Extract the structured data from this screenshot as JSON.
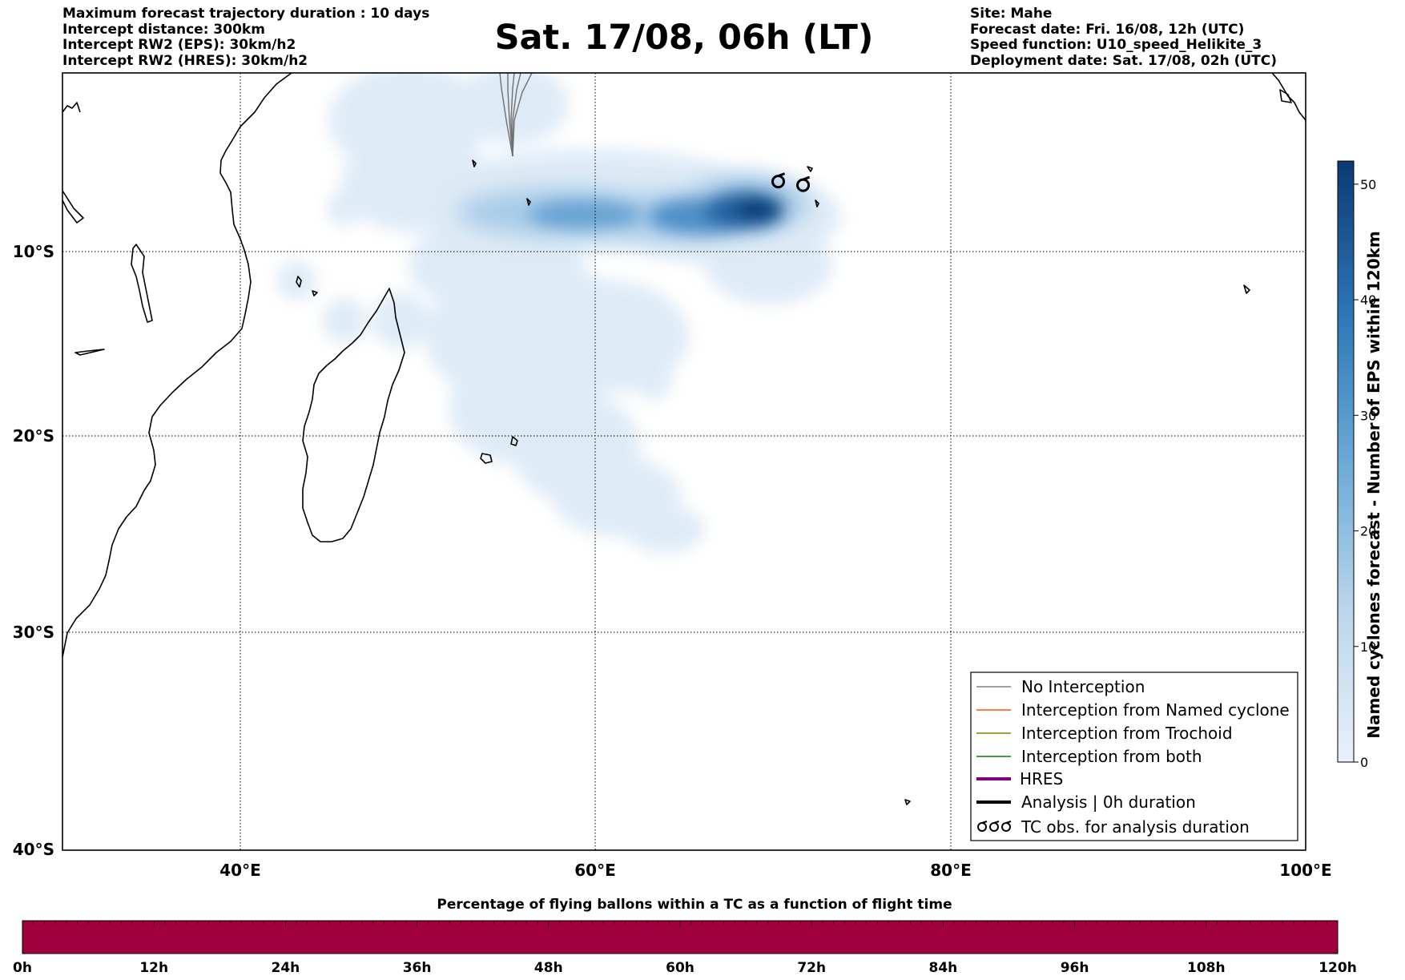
{
  "header": {
    "left": [
      "Maximum forecast trajectory duration : 10 days",
      "Intercept distance: 300km",
      "Intercept RW2 (EPS):  30km/h2",
      "Intercept RW2 (HRES): 30km/h2"
    ],
    "title": "Sat. 17/08, 06h (LT)",
    "right": [
      "Site: Mahe",
      "Forecast date: Fri. 16/08, 12h (UTC)",
      "Speed function: U10_speed_Helikite_3",
      "Deployment date: Sat. 17/08, 02h (UTC)"
    ]
  },
  "map": {
    "lon_range": [
      30,
      100
    ],
    "lat_range": [
      -40,
      0
    ],
    "lon_ticks": [
      "40°E",
      "60°E",
      "80°E",
      "100°E"
    ],
    "lat_ticks": [
      "10°S",
      "20°S",
      "30°S",
      "40°S"
    ],
    "gridlines": true
  },
  "colorbar": {
    "label": "Named cyclones forecast - Number of EPS within 120km",
    "ticks": [
      "0",
      "10",
      "20",
      "30",
      "40",
      "50"
    ],
    "range": [
      0,
      52
    ]
  },
  "legend": {
    "items": [
      {
        "label": "No Interception",
        "color": "#808080"
      },
      {
        "label": "Interception from Named cyclone",
        "color": "#ff5500"
      },
      {
        "label": "Interception from Trochoid",
        "color": "#808000"
      },
      {
        "label": "Interception from both",
        "color": "#008000"
      },
      {
        "label": "HRES",
        "color": "#800080"
      },
      {
        "label": "Analysis | 0h duration",
        "color": "#000000"
      },
      {
        "label": "TC obs. for analysis duration",
        "color": "#000000",
        "icon": "cyclone-symbol-icon"
      }
    ]
  },
  "bottom_bar": {
    "title": "Percentage of flying ballons within a TC as a function of flight time",
    "ticks": [
      "0h",
      "12h",
      "24h",
      "36h",
      "48h",
      "60h",
      "72h",
      "84h",
      "96h",
      "108h",
      "120h"
    ],
    "color": "#a0003c"
  },
  "tc_obs": [
    {
      "lon": 70.3,
      "lat": -6.1
    },
    {
      "lon": 71.7,
      "lat": -6.3
    }
  ]
}
